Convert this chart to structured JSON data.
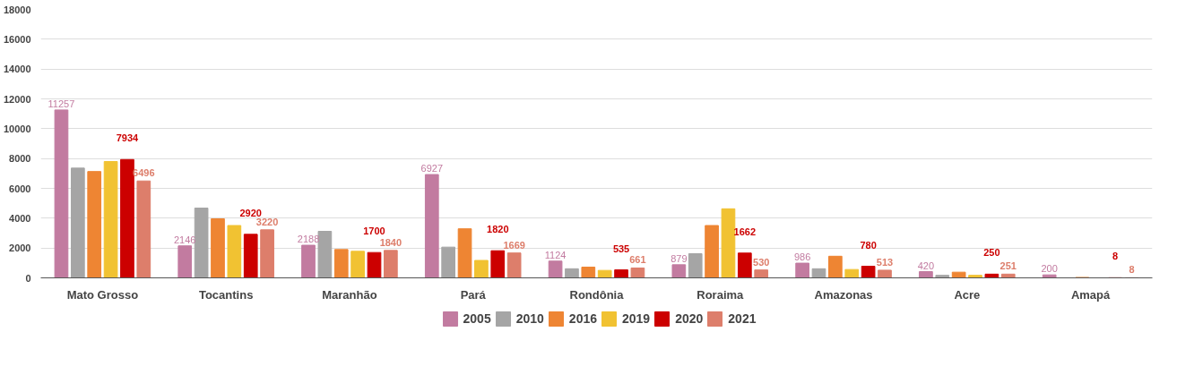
{
  "chart_data": {
    "type": "bar",
    "categories": [
      "Mato Grosso",
      "Tocantins",
      "Maranhão",
      "Pará",
      "Rondônia",
      "Roraima",
      "Amazonas",
      "Acre",
      "Amapá"
    ],
    "ylim": [
      0,
      18000
    ],
    "yticks": [
      0,
      2000,
      4000,
      6000,
      8000,
      10000,
      12000,
      14000,
      16000,
      18000
    ],
    "grid": "y",
    "legend": "bottom",
    "series": [
      {
        "name": "2005",
        "color": "#c27ba0",
        "values": [
          11257,
          2146,
          2188,
          6927,
          1124,
          879,
          986,
          420,
          200
        ],
        "value_labels": [
          "11257",
          "2146",
          "2188",
          "6927",
          "1124",
          "879",
          "986",
          "420",
          "200"
        ]
      },
      {
        "name": "2010",
        "color": "#a5a5a5",
        "values": [
          7360,
          4680,
          3120,
          2060,
          610,
          1620,
          610,
          170,
          null
        ]
      },
      {
        "name": "2016",
        "color": "#ee8533",
        "values": [
          7130,
          3960,
          1900,
          3290,
          720,
          3510,
          1450,
          380,
          30
        ]
      },
      {
        "name": "2019",
        "color": "#f1c232",
        "values": [
          7800,
          3510,
          1780,
          1170,
          500,
          4630,
          560,
          170,
          null
        ]
      },
      {
        "name": "2020",
        "color": "#cc0000",
        "values": [
          7934,
          2920,
          1700,
          1820,
          535,
          1662,
          780,
          250,
          8
        ],
        "value_labels": [
          "7934",
          "2920",
          "1700",
          "1820",
          "535",
          "1662",
          "780",
          "250",
          "8"
        ]
      },
      {
        "name": "2021",
        "color": "#dd7e6b",
        "values": [
          6496,
          3220,
          1840,
          1669,
          661,
          530,
          513,
          251,
          8
        ],
        "value_labels": [
          "6496",
          "3220",
          "1840",
          "1669",
          "661",
          "530",
          "513",
          "251",
          "8"
        ]
      }
    ]
  }
}
